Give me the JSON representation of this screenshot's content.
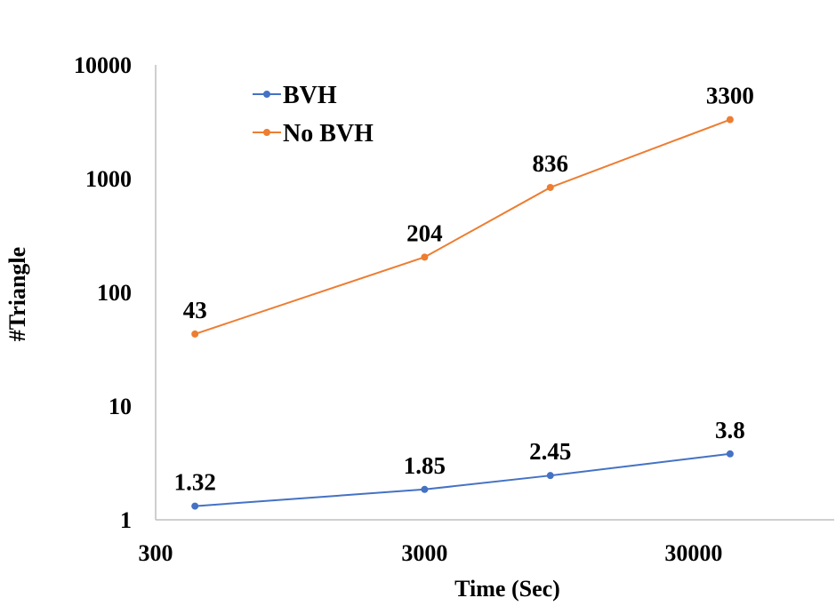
{
  "chart_data": {
    "type": "line",
    "xlabel": "Time (Sec)",
    "ylabel": "#Triangle",
    "x_scale": "log",
    "y_scale": "log",
    "xlim": [
      300,
      100000
    ],
    "ylim": [
      1,
      10000
    ],
    "x_ticks": [
      {
        "value": 300,
        "label": "300"
      },
      {
        "value": 3000,
        "label": "3000"
      },
      {
        "value": 30000,
        "label": "30000"
      }
    ],
    "y_ticks": [
      {
        "value": 1,
        "label": "1"
      },
      {
        "value": 10,
        "label": "10"
      },
      {
        "value": 100,
        "label": "100"
      },
      {
        "value": 1000,
        "label": "1000"
      },
      {
        "value": 10000,
        "label": "10000"
      }
    ],
    "legend_position": "top-left",
    "grid": false,
    "series": [
      {
        "name": "BVH",
        "color": "#4472C4",
        "x": [
          420,
          3000,
          8800,
          41000
        ],
        "y": [
          1.32,
          1.85,
          2.45,
          3.8
        ],
        "labels": [
          "1.32",
          "1.85",
          "2.45",
          "3.8"
        ]
      },
      {
        "name": "No BVH",
        "color": "#ED7D31",
        "x": [
          420,
          3000,
          8800,
          41000
        ],
        "y": [
          43,
          204,
          836,
          3300
        ],
        "labels": [
          "43",
          "204",
          "836",
          "3300"
        ]
      }
    ]
  }
}
